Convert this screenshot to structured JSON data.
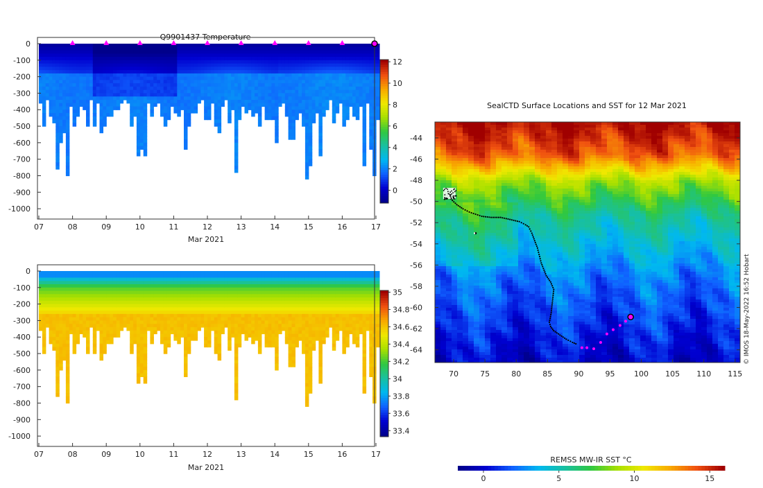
{
  "figure": {
    "credit": "© IMOS 18-May-2022 16:52 Hobart"
  },
  "chart_data": [
    {
      "type": "heatmap",
      "title": "Q9901437  Temperature",
      "xlabel": "Mar 2021",
      "ylabel": "",
      "x_ticks": [
        "07",
        "08",
        "09",
        "10",
        "11",
        "12",
        "13",
        "14",
        "15",
        "16",
        "17"
      ],
      "x_range": [
        7,
        17.05
      ],
      "y_ticks": [
        "0",
        "-100",
        "-200",
        "-300",
        "-400",
        "-500",
        "-600",
        "-700",
        "-800",
        "-900",
        "-1000"
      ],
      "y_range": [
        0,
        -1050
      ],
      "colorbar": {
        "ticks": [
          "0",
          "2",
          "4",
          "6",
          "8",
          "10",
          "12"
        ],
        "range": [
          -1.2,
          12.2
        ],
        "colors": [
          "#00008b",
          "#0000d0",
          "#1060ff",
          "#00b8f0",
          "#18c0a0",
          "#30c840",
          "#a8e000",
          "#f0e800",
          "#f8a800",
          "#f05010",
          "#a00000"
        ]
      },
      "markers": {
        "symbol": "magenta triangle",
        "x": [
          8,
          9,
          10,
          11,
          12,
          13,
          14,
          15,
          16
        ],
        "last_profile_day": 17
      }
    },
    {
      "type": "heatmap",
      "title": "",
      "xlabel": "Mar 2021",
      "ylabel": "",
      "x_ticks": [
        "07",
        "08",
        "09",
        "10",
        "11",
        "12",
        "13",
        "14",
        "15",
        "16",
        "17"
      ],
      "x_range": [
        7,
        17.05
      ],
      "y_ticks": [
        "0",
        "-100",
        "-200",
        "-300",
        "-400",
        "-500",
        "-600",
        "-700",
        "-800",
        "-900",
        "-1000"
      ],
      "y_range": [
        0,
        -1050
      ],
      "colorbar": {
        "ticks": [
          "33.4",
          "33.6",
          "33.8",
          "34",
          "34.2",
          "34.4",
          "34.6",
          "34.8",
          "35"
        ],
        "range": [
          33.33,
          35.02
        ],
        "colors": [
          "#00008b",
          "#0000d0",
          "#1060ff",
          "#00b8f0",
          "#18c0a0",
          "#30c840",
          "#a8e000",
          "#f0e800",
          "#f8a800",
          "#f05010",
          "#a00000"
        ]
      }
    },
    {
      "type": "map",
      "title": "SealCTD Surface Locations and SST for 12 Mar 2021",
      "x_ticks": [
        "70",
        "75",
        "80",
        "85",
        "90",
        "95",
        "100",
        "105",
        "110",
        "115"
      ],
      "x_range": [
        67,
        115.8
      ],
      "y_ticks": [
        "-44",
        "-46",
        "-48",
        "-50",
        "-52",
        "-54",
        "-56",
        "-58",
        "-60",
        "-62",
        "-64"
      ],
      "y_range": [
        -42.5,
        -65.2
      ],
      "track": {
        "lon": [
          68.7,
          69.2,
          69.8,
          70.5,
          71.5,
          72.5,
          73.5,
          74.5,
          76,
          77.5,
          79,
          80.5,
          81.5,
          82,
          82.5,
          83.4,
          84.0,
          84.8,
          85.5,
          86.0,
          85.8,
          85.6,
          85.3,
          85.5,
          86.0,
          87.0,
          88.0,
          89.0,
          89.8
        ],
        "lat": [
          -49.3,
          -49.6,
          -49.9,
          -50.3,
          -50.7,
          -51.0,
          -51.2,
          -51.4,
          -51.5,
          -51.5,
          -51.7,
          -51.9,
          -52.2,
          -52.4,
          -53.0,
          -54.4,
          -55.8,
          -57.0,
          -57.6,
          -58.3,
          -59.4,
          -60.5,
          -61.4,
          -61.8,
          -62.2,
          -62.6,
          -63.0,
          -63.3,
          -63.5
        ],
        "recent_lon": [
          90.5,
          91.3,
          92.4,
          93.5,
          94.5,
          95.5,
          96.6,
          97.5
        ],
        "recent_lat": [
          -63.8,
          -63.8,
          -63.9,
          -63.3,
          -62.5,
          -62.1,
          -61.7,
          -61.3
        ],
        "current": {
          "lon": 98.3,
          "lat": -60.9
        },
        "start": {
          "lon": 69.2,
          "lat": -49.3
        },
        "extra_point": {
          "lon": 73.5,
          "lat": -53.0
        }
      },
      "colorbar": {
        "label": "REMSS MW-IR SST °C",
        "ticks": [
          "0",
          "5",
          "10",
          "15"
        ],
        "range": [
          -1.7,
          16.0
        ],
        "colors": [
          "#00008b",
          "#0000d0",
          "#1060ff",
          "#00b8f0",
          "#18c0a0",
          "#30c840",
          "#a8e000",
          "#f0e800",
          "#f8a800",
          "#f05010",
          "#a00000"
        ]
      }
    }
  ]
}
